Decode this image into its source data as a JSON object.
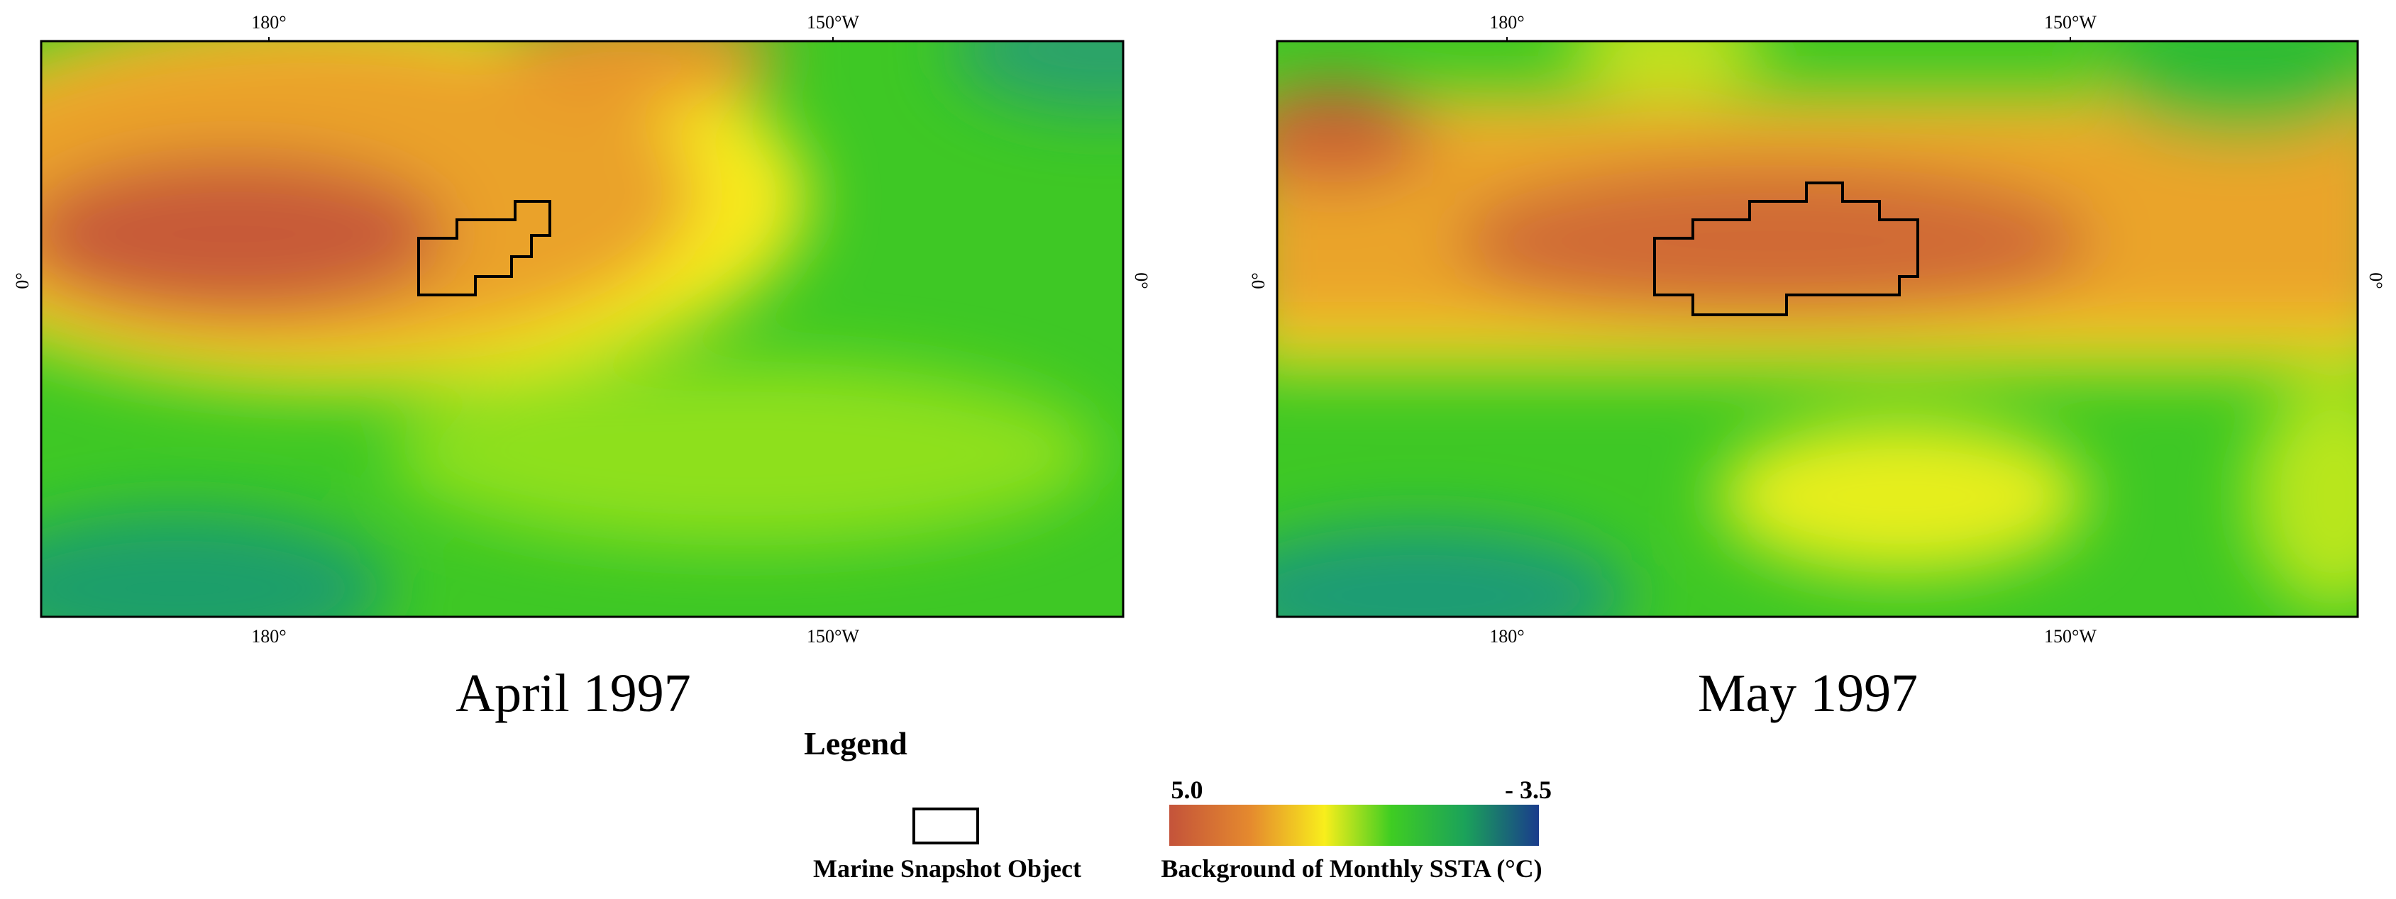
{
  "panels": [
    {
      "title": "April 1997",
      "top_ticks": [
        "180°",
        "150°W"
      ],
      "bottom_ticks": [
        "180°",
        "150°W"
      ],
      "left_tick": "0°",
      "right_tick": "0°"
    },
    {
      "title": "May 1997",
      "top_ticks": [
        "180°",
        "150°W"
      ],
      "bottom_ticks": [
        "180°",
        "150°W"
      ],
      "left_tick": "0°",
      "right_tick": "0°"
    }
  ],
  "legend": {
    "title": "Legend",
    "object_label": "Marine Snapshot Object",
    "scale_max": "5.0",
    "scale_min": "- 3.5",
    "scale_label": "Background of Monthly SSTA (°C)"
  }
}
